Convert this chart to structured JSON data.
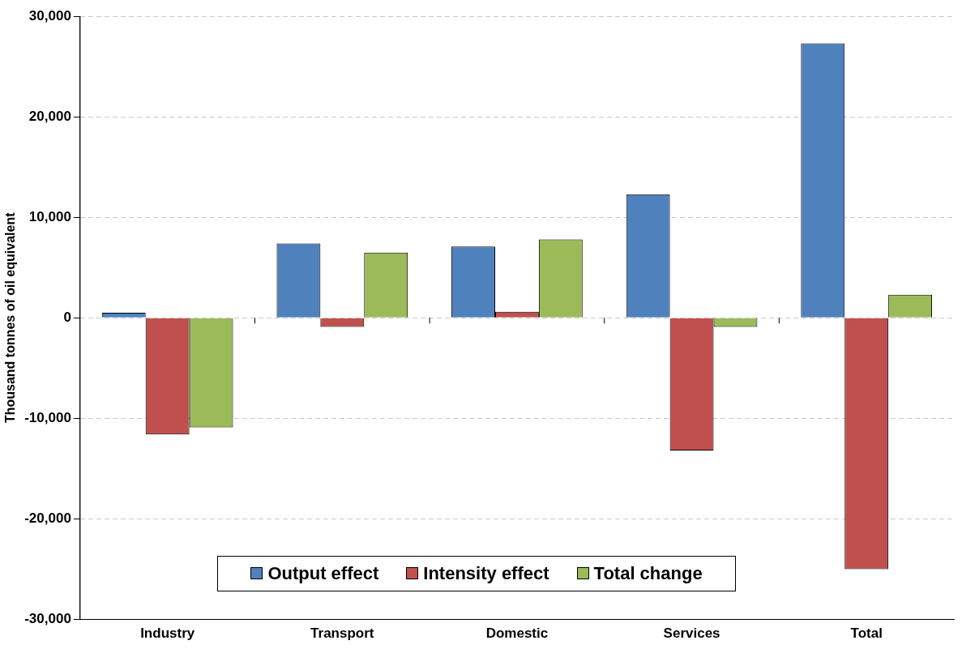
{
  "chart_data": {
    "type": "bar",
    "ylabel": "Thousand tonnes of oil equivalent",
    "categories": [
      "Industry",
      "Transport",
      "Domestic",
      "Services",
      "Total"
    ],
    "series": [
      {
        "name": "Output effect",
        "color": "#4f81bd",
        "values": [
          500,
          7400,
          7100,
          12300,
          27300
        ]
      },
      {
        "name": "Intensity effect",
        "color": "#c0504d",
        "values": [
          -11600,
          -900,
          600,
          -13200,
          -25000
        ]
      },
      {
        "name": "Total change",
        "color": "#9bbb59",
        "values": [
          -10900,
          6500,
          7800,
          -900,
          2300
        ]
      }
    ],
    "ylim": [
      -30000,
      30000
    ],
    "yticks": [
      {
        "value": -30000,
        "label": "-30,000"
      },
      {
        "value": -20000,
        "label": "-20,000"
      },
      {
        "value": -10000,
        "label": "-10,000"
      },
      0,
      {
        "value": 10000,
        "label": "10,000"
      },
      {
        "value": 20000,
        "label": "20,000"
      },
      {
        "value": 30000,
        "label": "30,000"
      }
    ],
    "grid": "y",
    "legend": "bottom"
  }
}
